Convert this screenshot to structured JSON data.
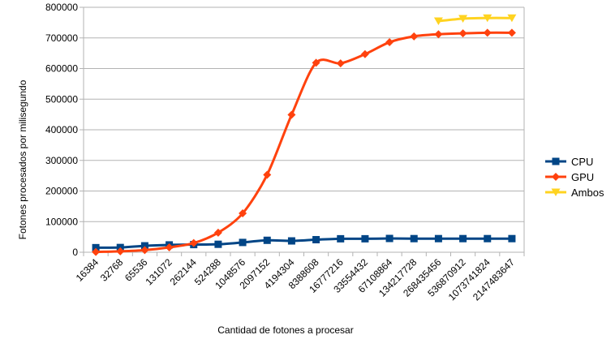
{
  "chart_data": {
    "type": "line",
    "title": "",
    "xlabel": "Cantidad de fotones a procesar",
    "ylabel": "Fotones procesados por milisegundo",
    "ylim": [
      0,
      800000
    ],
    "yticks": [
      0,
      100000,
      200000,
      300000,
      400000,
      500000,
      600000,
      700000,
      800000
    ],
    "grid": "horizontal",
    "legend": "right",
    "categories": [
      "16384",
      "32768",
      "65536",
      "131072",
      "262144",
      "524288",
      "1048576",
      "2097152",
      "4194304",
      "8388608",
      "16777216",
      "33554432",
      "67108864",
      "134217728",
      "268435456",
      "536870912",
      "1073741824",
      "2147483647"
    ],
    "series": [
      {
        "name": "CPU",
        "color": "#004586",
        "marker": "square",
        "values": [
          15000,
          15500,
          21000,
          24000,
          25000,
          26000,
          32000,
          39000,
          37000,
          41000,
          44000,
          44000,
          45000,
          44500,
          44500,
          44500,
          44500,
          44500
        ]
      },
      {
        "name": "GPU",
        "color": "#ff420e",
        "marker": "diamond",
        "values": [
          1000,
          3000,
          7000,
          16000,
          30000,
          64000,
          127000,
          253000,
          449000,
          619000,
          617000,
          647000,
          686000,
          705000,
          712000,
          715000,
          717000,
          717000
        ]
      },
      {
        "name": "Ambos",
        "color": "#ffd320",
        "marker": "triangle-down",
        "values": [
          null,
          null,
          null,
          null,
          null,
          null,
          null,
          null,
          null,
          null,
          null,
          null,
          null,
          null,
          755000,
          763000,
          765000,
          765000
        ]
      }
    ]
  }
}
